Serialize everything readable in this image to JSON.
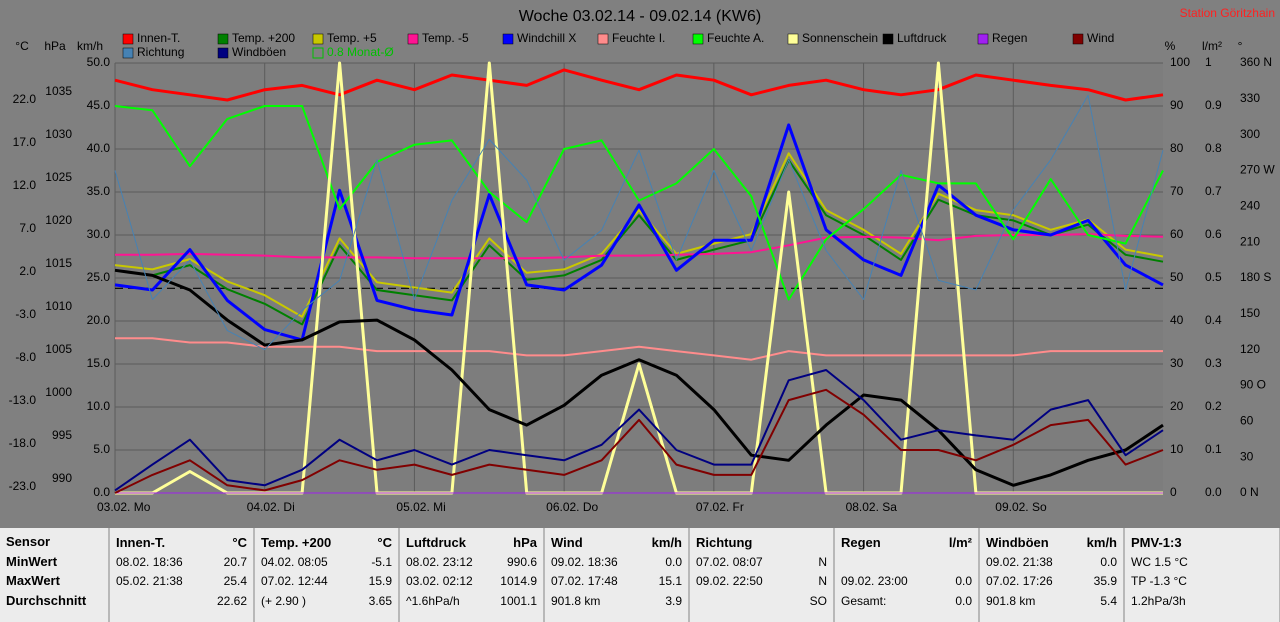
{
  "chart_data": {
    "type": "line",
    "title": "Woche 03.02.14 - 09.02.14 (KW6)",
    "station": "Station Göritzhain",
    "x": [
      0,
      6,
      12,
      18,
      24,
      30,
      36,
      42,
      48,
      54,
      60,
      66,
      72,
      78,
      84,
      90,
      96,
      102,
      108,
      114,
      120,
      126,
      132,
      138,
      144,
      150,
      156,
      162,
      168
    ],
    "xlim": [
      0,
      168
    ],
    "xticks": [
      {
        "value": 0,
        "label": "03.02. Mo"
      },
      {
        "value": 24,
        "label": "04.02. Di"
      },
      {
        "value": 48,
        "label": "05.02. Mi"
      },
      {
        "value": 72,
        "label": "06.02. Do"
      },
      {
        "value": 96,
        "label": "07.02. Fr"
      },
      {
        "value": 120,
        "label": "08.02. Sa"
      },
      {
        "value": 144,
        "label": "09.02. So"
      }
    ],
    "grid": true,
    "axes": {
      "temp": {
        "unit": "°C",
        "side": "left",
        "lim": [
          -23,
          27
        ],
        "ticks": [
          {
            "value": 22,
            "label": "22.0"
          },
          {
            "value": 17,
            "label": "17.0"
          },
          {
            "value": 12,
            "label": "12.0"
          },
          {
            "value": 7,
            "label": "7.0"
          },
          {
            "value": 2,
            "label": "2.0"
          },
          {
            "value": -3,
            "label": "-3.0"
          },
          {
            "value": -8,
            "label": "-8.0"
          },
          {
            "value": -13,
            "label": "-13.0"
          },
          {
            "value": -18,
            "label": "-18.0"
          },
          {
            "value": -23,
            "label": "-23.0"
          }
        ]
      },
      "press": {
        "unit": "hPa",
        "side": "left",
        "lim": [
          990,
          1040
        ],
        "ticks": [
          1035,
          1030,
          1025,
          1020,
          1015,
          1010,
          1005,
          1000,
          995,
          990
        ]
      },
      "wind": {
        "unit": "km/h",
        "side": "left",
        "lim": [
          0,
          50
        ],
        "ticks": [
          {
            "value": 50,
            "label": "50.0"
          },
          {
            "value": 45,
            "label": "45.0"
          },
          {
            "value": 40,
            "label": "40.0"
          },
          {
            "value": 35,
            "label": "35.0"
          },
          {
            "value": 30,
            "label": "30.0"
          },
          {
            "value": 25,
            "label": "25.0"
          },
          {
            "value": 20,
            "label": "20.0"
          },
          {
            "value": 15,
            "label": "15.0"
          },
          {
            "value": 10,
            "label": "10.0"
          },
          {
            "value": 5,
            "label": "5.0"
          },
          {
            "value": 0,
            "label": "0.0"
          }
        ]
      },
      "hum": {
        "unit": "%",
        "side": "right",
        "lim": [
          0,
          100
        ],
        "ticks": [
          100,
          90,
          80,
          70,
          60,
          50,
          40,
          30,
          20,
          10,
          0
        ]
      },
      "rain": {
        "unit": "l/m²",
        "side": "right",
        "lim": [
          0,
          1
        ],
        "ticks": [
          1,
          0.9,
          0.8,
          0.7,
          0.6,
          0.5,
          0.4,
          0.3,
          0.2,
          0.1,
          {
            "value": 0,
            "label": "0.0"
          }
        ]
      },
      "dir": {
        "unit": "°",
        "side": "right",
        "lim": [
          0,
          360
        ],
        "ticks": [
          {
            "value": 360,
            "label": "360 N"
          },
          330,
          300,
          {
            "value": 270,
            "label": "270 W"
          },
          240,
          210,
          {
            "value": 180,
            "label": "180 S"
          },
          150,
          120,
          {
            "value": 90,
            "label": "90 O"
          },
          60,
          30,
          {
            "value": 0,
            "label": "0 N"
          }
        ]
      }
    },
    "monthly_mean": {
      "value": 0.8,
      "label": "0.8 Monat-Ø",
      "color": "#00c000",
      "axis": "temp"
    },
    "series": [
      {
        "name": "Innen-T.",
        "color": "#ff0000",
        "axis": "temp",
        "width": 3,
        "values": [
          25.0,
          23.9,
          23.3,
          22.7,
          23.9,
          24.4,
          23.3,
          25.0,
          23.9,
          25.6,
          25.0,
          24.4,
          26.2,
          25.0,
          23.9,
          25.6,
          25.0,
          23.3,
          24.4,
          25.0,
          23.9,
          23.3,
          23.9,
          25.6,
          25.0,
          24.4,
          23.9,
          22.7,
          23.3
        ]
      },
      {
        "name": "Temp. +200",
        "color": "#008000",
        "axis": "temp",
        "width": 2,
        "values": [
          2.9,
          2.3,
          3.5,
          0.7,
          -1.0,
          -3.4,
          5.8,
          0.6,
          0.0,
          -0.6,
          5.8,
          1.8,
          2.3,
          4.1,
          9.3,
          4.1,
          5.3,
          6.4,
          15.7,
          9.3,
          7.0,
          4.1,
          11.1,
          9.3,
          8.7,
          7.0,
          8.2,
          4.7,
          3.9
        ]
      },
      {
        "name": "Temp. +5",
        "color": "#c8c800",
        "axis": "temp",
        "width": 2,
        "values": [
          3.5,
          3.0,
          4.2,
          1.6,
          0.0,
          -2.5,
          6.6,
          1.5,
          0.9,
          0.3,
          6.6,
          2.6,
          3.0,
          4.8,
          9.9,
          4.8,
          6.0,
          7.1,
          16.5,
          9.9,
          7.6,
          4.8,
          11.8,
          9.9,
          9.3,
          7.6,
          8.8,
          5.3,
          4.5
        ]
      },
      {
        "name": "Temp. -5",
        "color": "#ff1493",
        "axis": "temp",
        "width": 2,
        "values": [
          4.7,
          4.7,
          4.8,
          4.7,
          4.6,
          4.4,
          4.4,
          4.4,
          4.3,
          4.3,
          4.3,
          4.3,
          4.4,
          4.6,
          4.6,
          4.7,
          4.8,
          5.0,
          5.8,
          6.7,
          6.8,
          6.7,
          6.4,
          6.9,
          7.0,
          7.0,
          7.1,
          6.9,
          6.8
        ]
      },
      {
        "name": "Windchill X",
        "color": "#0000ff",
        "axis": "temp",
        "width": 3,
        "values": [
          1.2,
          0.6,
          5.3,
          -0.6,
          -4.0,
          -5.2,
          12.2,
          -0.6,
          -1.7,
          -2.3,
          11.7,
          1.2,
          0.6,
          3.5,
          10.5,
          2.9,
          6.4,
          6.4,
          19.8,
          7.6,
          4.1,
          2.3,
          12.8,
          9.3,
          7.6,
          7.0,
          8.7,
          3.5,
          1.2
        ]
      },
      {
        "name": "Feuchte I.",
        "color": "#ff8c8c",
        "axis": "hum",
        "width": 2,
        "values": [
          36,
          36,
          35,
          35,
          34,
          34,
          34,
          33,
          33,
          33,
          33,
          32,
          32,
          33,
          34,
          33,
          32,
          31,
          33,
          32,
          32,
          32,
          32,
          32,
          32,
          33,
          33,
          33,
          33
        ]
      },
      {
        "name": "Feuchte A.",
        "color": "#00ff00",
        "axis": "hum",
        "width": 2,
        "values": [
          90,
          89,
          76,
          87,
          90,
          90,
          66,
          77,
          81,
          82,
          70,
          63,
          80,
          82,
          68,
          72,
          80,
          69,
          45,
          59,
          66,
          74,
          72,
          72,
          59,
          73,
          60,
          58,
          75
        ]
      },
      {
        "name": "Sonnenschein",
        "color": "#ffff99",
        "axis": "hum",
        "width": 3,
        "values": [
          0,
          0,
          5,
          0,
          0,
          0,
          100,
          0,
          0,
          0,
          100,
          0,
          0,
          0,
          30,
          0,
          0,
          0,
          70,
          0,
          0,
          0,
          100,
          0,
          0,
          0,
          0,
          0,
          0
        ]
      },
      {
        "name": "Luftdruck",
        "color": "#000000",
        "axis": "press",
        "width": 3,
        "values": [
          1015.9,
          1015.3,
          1013.6,
          1010.1,
          1007.2,
          1007.8,
          1009.9,
          1010.1,
          1007.8,
          1004.3,
          999.7,
          997.9,
          1000.2,
          1003.7,
          1005.5,
          1003.7,
          999.7,
          994.4,
          993.8,
          997.9,
          1001.4,
          1000.8,
          997.3,
          992.7,
          990.9,
          992.1,
          993.8,
          995.0,
          997.9
        ]
      },
      {
        "name": "Regen",
        "color": "#a020f0",
        "axis": "rain",
        "width": 1,
        "values": [
          0,
          0,
          0,
          0,
          0,
          0,
          0,
          0,
          0,
          0,
          0,
          0,
          0,
          0,
          0,
          0,
          0,
          0,
          0,
          0,
          0,
          0,
          0,
          0,
          0,
          0,
          0,
          0,
          0
        ]
      },
      {
        "name": "Wind",
        "color": "#800000",
        "axis": "wind",
        "width": 2,
        "values": [
          0,
          2.1,
          3.8,
          0.9,
          0.3,
          1.5,
          3.8,
          2.7,
          3.3,
          2.1,
          3.3,
          2.7,
          2.1,
          3.8,
          8.5,
          3.3,
          2.1,
          2.1,
          10.8,
          12.0,
          9.1,
          5.0,
          5.0,
          3.8,
          5.6,
          7.9,
          8.5,
          3.3,
          5.0
        ]
      },
      {
        "name": "Richtung",
        "color": "#4682b4",
        "axis": "dir",
        "width": 1,
        "values": [
          270,
          162,
          195,
          136,
          120,
          153,
          178,
          279,
          162,
          245,
          296,
          262,
          195,
          220,
          287,
          195,
          270,
          203,
          279,
          203,
          162,
          270,
          178,
          170,
          237,
          279,
          333,
          170,
          287
        ]
      },
      {
        "name": "Windböen",
        "color": "#000080",
        "axis": "wind",
        "width": 2,
        "values": [
          0.3,
          3.3,
          6.2,
          1.5,
          0.9,
          2.7,
          6.2,
          3.8,
          5.0,
          3.3,
          5.0,
          4.4,
          3.8,
          5.6,
          9.7,
          5.0,
          3.3,
          3.3,
          13.1,
          14.3,
          10.8,
          6.2,
          7.3,
          6.7,
          6.2,
          9.7,
          10.8,
          4.4,
          7.3
        ]
      }
    ]
  },
  "table": {
    "sensor": [
      "Sensor",
      "MinWert",
      "MaxWert",
      "Durchschnitt"
    ],
    "columns": [
      {
        "header": "Innen-T.",
        "unit": "°C",
        "rows": [
          {
            "left": "08.02. 18:36",
            "right": "20.7"
          },
          {
            "left": "05.02. 21:38",
            "right": "25.4"
          },
          {
            "right": "22.62"
          }
        ]
      },
      {
        "header": "Temp. +200",
        "unit": "°C",
        "rows": [
          {
            "left": "04.02. 08:05",
            "right": "-5.1"
          },
          {
            "left": "07.02. 12:44",
            "right": "15.9"
          },
          {
            "left": "(+ 2.90 )",
            "right": "3.65"
          }
        ]
      },
      {
        "header": "Luftdruck",
        "unit": "hPa",
        "rows": [
          {
            "left": "08.02. 23:12",
            "right": "990.6"
          },
          {
            "left": "03.02. 02:12",
            "right": "1014.9"
          },
          {
            "left": "^1.6hPa/h",
            "right": "1001.1"
          }
        ]
      },
      {
        "header": "Wind",
        "unit": "km/h",
        "rows": [
          {
            "left": "09.02. 18:36",
            "right": "0.0"
          },
          {
            "left": "07.02. 17:48",
            "right": "15.1"
          },
          {
            "left": "901.8 km",
            "right": "3.9"
          }
        ]
      },
      {
        "header": "Richtung",
        "rows": [
          {
            "left": "07.02. 08:07",
            "right": "N"
          },
          {
            "left": "09.02. 22:50",
            "right": "N"
          },
          {
            "right": "SO"
          }
        ]
      },
      {
        "header": "Regen",
        "unit": "l/m²",
        "rows": [
          null,
          {
            "left": "09.02. 23:00",
            "right": "0.0"
          },
          {
            "left": "Gesamt:",
            "right": "0.0"
          }
        ]
      },
      {
        "header": "Windböen",
        "unit": "km/h",
        "rows": [
          {
            "left": "09.02. 21:38",
            "right": "0.0"
          },
          {
            "left": "07.02. 17:26",
            "right": "35.9"
          },
          {
            "left": "901.8 km",
            "right": "5.4"
          }
        ]
      },
      {
        "header": "PMV-1:3",
        "rows": [
          {
            "left": "WC 1.5 °C"
          },
          {
            "left": "TP -1.3 °C"
          },
          {
            "left": "1.2hPa/3h"
          }
        ]
      }
    ]
  }
}
